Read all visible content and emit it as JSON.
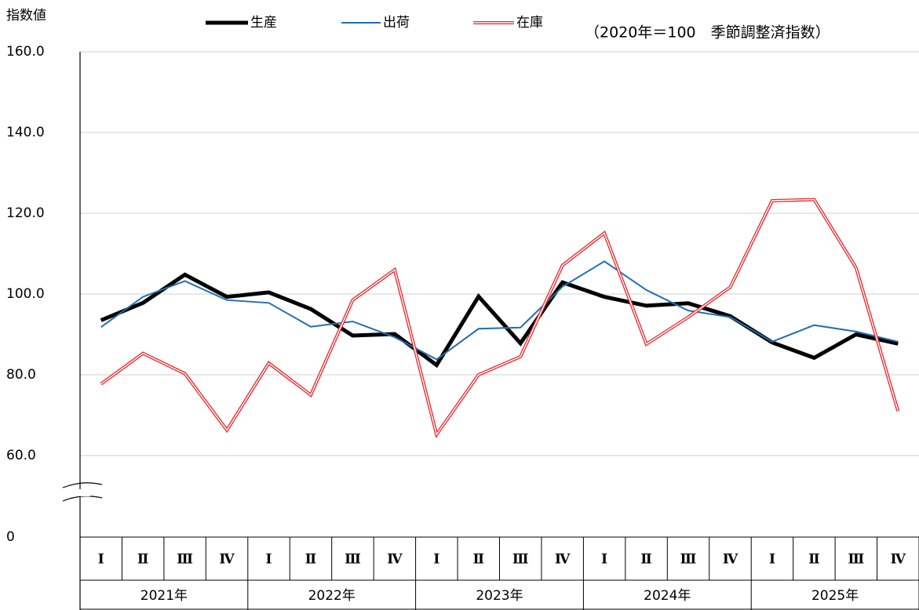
{
  "chart_data": {
    "type": "line",
    "y_label": "指数値",
    "note": "（2020年＝100　季節調整済指数）",
    "categories": [
      "Ⅰ",
      "Ⅱ",
      "Ⅲ",
      "Ⅳ",
      "Ⅰ",
      "Ⅱ",
      "Ⅲ",
      "Ⅳ",
      "Ⅰ",
      "Ⅱ",
      "Ⅲ",
      "Ⅳ",
      "Ⅰ",
      "Ⅱ",
      "Ⅲ",
      "Ⅳ",
      "Ⅰ",
      "Ⅱ",
      "Ⅲ",
      "Ⅳ"
    ],
    "groups": [
      "2021年",
      "2022年",
      "2023年",
      "2024年",
      "2025年"
    ],
    "series": [
      {
        "name": "生産",
        "color": "#000000",
        "values": [
          93.5,
          97.8,
          104.8,
          99.3,
          100.4,
          96.3,
          89.7,
          90.1,
          82.4,
          99.4,
          87.8,
          102.9,
          99.3,
          97.1,
          97.7,
          94.5,
          88.0,
          84.2,
          90.0,
          87.7
        ]
      },
      {
        "name": "出荷",
        "color": "#1f6fb5",
        "values": [
          91.8,
          99.3,
          103.2,
          98.5,
          97.8,
          91.9,
          93.2,
          89.3,
          83.8,
          91.4,
          91.7,
          101.8,
          108.1,
          101.0,
          95.9,
          94.3,
          88.2,
          92.3,
          90.7,
          88.2
        ]
      },
      {
        "name": "在庫",
        "color": "#e8262a",
        "values": [
          77.7,
          85.3,
          80.3,
          66.3,
          82.9,
          75.0,
          98.5,
          106.0,
          65.2,
          80.0,
          84.5,
          107.1,
          115.1,
          87.6,
          94.3,
          101.7,
          123.1,
          123.4,
          106.5,
          71.0
        ]
      }
    ],
    "ylim": [
      0,
      160
    ],
    "axis_break": true,
    "yticks": [
      0,
      {
        "value": 60,
        "label": "60.0"
      },
      {
        "value": 80,
        "label": "80.0"
      },
      {
        "value": 100,
        "label": "100.0"
      },
      {
        "value": 120,
        "label": "120.0"
      },
      {
        "value": 140,
        "label": "140.0"
      },
      {
        "value": 160,
        "label": "160.0"
      }
    ],
    "grid": true
  }
}
